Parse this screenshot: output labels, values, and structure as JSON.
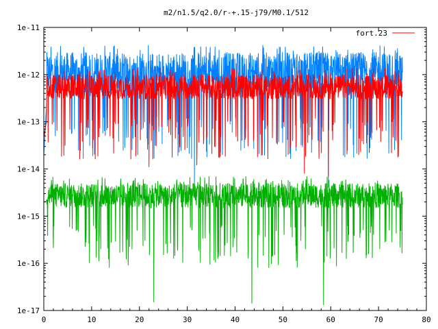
{
  "chart_data": {
    "type": "line",
    "title": "m2/n1.5/q2.0/r-+.15-j79/M0.1/512",
    "xlabel": "",
    "ylabel": "",
    "xlim": [
      0,
      80
    ],
    "ylim": [
      1e-17,
      1e-11
    ],
    "yscale": "log",
    "grid": false,
    "legend_placement": "top-right",
    "x_ticks": [
      0,
      10,
      20,
      30,
      40,
      50,
      60,
      70,
      80
    ],
    "x_tick_labels": [
      "0",
      "10",
      "20",
      "30",
      "40",
      "50",
      "60",
      "70",
      "80"
    ],
    "y_ticks": [
      1e-17,
      1e-16,
      1e-15,
      1e-14,
      1e-13,
      1e-12,
      1e-11
    ],
    "y_tick_labels": [
      "1e-17",
      "1e-16",
      "1e-15",
      "1e-14",
      "1e-13",
      "1e-12",
      "1e-11"
    ],
    "legend": [
      "fort.23"
    ],
    "series": [
      {
        "name": "fort.23",
        "color": "#ff0000",
        "typical_range": [
          2e-13,
          1e-12
        ],
        "x": [
          0,
          2,
          5,
          8,
          12,
          16,
          20,
          22,
          25,
          30,
          32,
          35,
          40,
          45,
          50,
          54.5,
          55,
          59.5,
          60,
          65,
          70,
          75
        ],
        "y": [
          5e-14,
          6e-13,
          5e-13,
          6e-13,
          4e-13,
          5e-13,
          4e-13,
          1.1e-14,
          5e-13,
          4e-13,
          1.2e-14,
          5e-13,
          4e-13,
          5e-13,
          4e-13,
          8e-15,
          4e-13,
          7e-15,
          5e-13,
          4e-13,
          5e-13,
          4e-13
        ]
      },
      {
        "color": "#0080ff",
        "typical_range": [
          2e-13,
          3e-12
        ],
        "x": [
          0,
          1,
          5,
          10,
          15,
          20,
          25,
          30,
          31.5,
          35,
          40,
          45,
          50,
          55,
          59.5,
          60,
          65,
          70,
          73,
          75
        ],
        "y": [
          2e-14,
          1.5e-12,
          1.2e-12,
          1.3e-12,
          1.2e-12,
          1.1e-12,
          1.2e-12,
          1.1e-12,
          4e-15,
          1e-12,
          1.2e-12,
          1.1e-12,
          1.3e-12,
          1.5e-12,
          4e-15,
          1.4e-12,
          1.5e-12,
          1.4e-12,
          4.5e-12,
          1.3e-12
        ]
      },
      {
        "color": "#00b000",
        "typical_range": [
          1e-15,
          5e-15
        ],
        "x": [
          0,
          5,
          10,
          15,
          20,
          23,
          25,
          30,
          35,
          40,
          43.5,
          45,
          50,
          55,
          58.5,
          60,
          65,
          70,
          75
        ],
        "y": [
          2e-15,
          2.5e-15,
          2.2e-15,
          2.4e-15,
          2.3e-15,
          1.5e-17,
          2.4e-15,
          2.2e-15,
          2.5e-15,
          2.3e-15,
          1.4e-17,
          2.5e-15,
          2.4e-15,
          2.3e-15,
          1.3e-17,
          2.5e-15,
          2.4e-15,
          2.3e-15,
          2.5e-15
        ]
      }
    ]
  }
}
